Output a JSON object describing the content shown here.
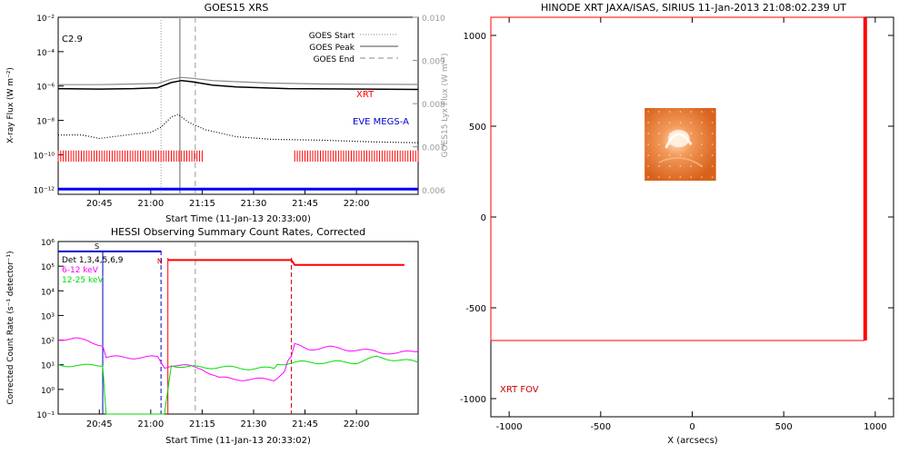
{
  "chart_data": [
    {
      "type": "line",
      "title": "GOES15 XRS",
      "xlabel": "Start Time (11-Jan-13 20:33:00)",
      "ylabel": "X-ray Flux (W m⁻²)",
      "y2label": "GOES15 Lyx Flux (W m⁻²)",
      "x_ticks": [
        "20:45",
        "21:00",
        "21:15",
        "21:30",
        "21:45",
        "22:00"
      ],
      "x_tick_minutes": [
        45,
        60,
        75,
        90,
        105,
        120
      ],
      "xlim_minutes": [
        33,
        138
      ],
      "y_ticks": [
        "10⁻²",
        "10⁻⁴",
        "10⁻⁶",
        "10⁻⁸",
        "10⁻¹⁰",
        "10⁻¹²"
      ],
      "ylim_log10": [
        -12.3,
        -2
      ],
      "y2_ticks": [
        "0.010",
        "0.009",
        "0.008",
        "0.007",
        "0.006"
      ],
      "y2lim": [
        0.0059,
        0.01
      ],
      "flare_class": "C2.9",
      "legend": [
        "GOES Start",
        "GOES Peak",
        "GOES End"
      ],
      "markers_minutes": {
        "start": 63,
        "peak": 68.5,
        "end": 73
      },
      "labels": {
        "xrt": "XRT",
        "eve": "EVE MEGS-A"
      },
      "colors": {
        "xrt": "#ff0000",
        "eve": "#0000cc"
      },
      "series": [
        {
          "name": "",
          "values_log10": [
            [
              33,
              -5.92
            ],
            [
              45,
              -5.92
            ],
            [
              55,
              -5.88
            ],
            [
              62,
              -5.85
            ],
            [
              66,
              -5.6
            ],
            [
              69,
              -5.5
            ],
            [
              72,
              -5.55
            ],
            [
              78,
              -5.68
            ],
            [
              85,
              -5.75
            ],
            [
              95,
              -5.83
            ],
            [
              110,
              -5.88
            ],
            [
              125,
              -5.9
            ],
            [
              138,
              -5.91
            ]
          ]
        },
        {
          "name": "",
          "values_log10": [
            [
              33,
              -6.15
            ],
            [
              45,
              -6.18
            ],
            [
              55,
              -6.15
            ],
            [
              62,
              -6.1
            ],
            [
              66,
              -5.8
            ],
            [
              69,
              -5.68
            ],
            [
              72,
              -5.75
            ],
            [
              78,
              -5.95
            ],
            [
              85,
              -6.05
            ],
            [
              100,
              -6.15
            ],
            [
              138,
              -6.2
            ]
          ]
        },
        {
          "name": "",
          "values_log10": [
            [
              33,
              -8.85
            ],
            [
              40,
              -8.85
            ],
            [
              45,
              -9.05
            ],
            [
              55,
              -8.8
            ],
            [
              60,
              -8.7
            ],
            [
              63,
              -8.4
            ],
            [
              66,
              -7.8
            ],
            [
              68,
              -7.65
            ],
            [
              71,
              -8.1
            ],
            [
              76,
              -8.55
            ],
            [
              85,
              -8.95
            ],
            [
              95,
              -9.1
            ],
            [
              110,
              -9.15
            ],
            [
              125,
              -9.25
            ],
            [
              138,
              -9.3
            ]
          ]
        },
        {
          "name": "",
          "values_log10": [
            [
              33,
              -12.0
            ],
            [
              138,
              -12.0
            ]
          ]
        }
      ],
      "xrt_intervals_minutes": [
        [
          33,
          75
        ],
        [
          102,
          138
        ]
      ]
    },
    {
      "type": "line",
      "title": "HESSI Observing Summary Count Rates, Corrected",
      "xlabel": "Start Time (11-Jan-13 20:33:02)",
      "ylabel": "Corrected Count Rate (s⁻¹ detector⁻¹)",
      "x_ticks": [
        "20:45",
        "21:00",
        "21:15",
        "21:30",
        "21:45",
        "22:00"
      ],
      "x_tick_minutes": [
        45,
        60,
        75,
        90,
        105,
        120
      ],
      "xlim_minutes": [
        33,
        138
      ],
      "y_ticks": [
        "10⁶",
        "10⁵",
        "10⁴",
        "10³",
        "10²",
        "10¹",
        "10⁰",
        "10⁻¹"
      ],
      "ylim_log10": [
        -1,
        6
      ],
      "marker_s": "S",
      "marker_n": "N",
      "legend": [
        {
          "label": "Det 1,3,4,5,6,9",
          "color": "#000000"
        },
        {
          "label": "6-12 keV",
          "color": "#ff00ff"
        },
        {
          "label": "12-25 keV",
          "color": "#00dd00"
        }
      ],
      "series": [
        {
          "name": "6-12 keV",
          "values_log10": [
            [
              33,
              2.05
            ],
            [
              38,
              2.05
            ],
            [
              42,
              1.95
            ],
            [
              46,
              1.8
            ],
            [
              47,
              1.3
            ],
            [
              62,
              1.3
            ],
            [
              64,
              0.9
            ],
            [
              66,
              1.0
            ],
            [
              70,
              0.95
            ],
            [
              75,
              0.85
            ],
            [
              80,
              0.45
            ],
            [
              90,
              0.4
            ],
            [
              96,
              0.4
            ],
            [
              99,
              0.75
            ],
            [
              100,
              1.15
            ],
            [
              101,
              1.3
            ],
            [
              102,
              1.8
            ],
            [
              106,
              1.65
            ],
            [
              112,
              1.7
            ],
            [
              118,
              1.62
            ],
            [
              125,
              1.55
            ],
            [
              132,
              1.45
            ],
            [
              138,
              1.58
            ]
          ]
        },
        {
          "name": "12-25 keV",
          "values_log10": [
            [
              33,
              1.0
            ],
            [
              40,
              0.95
            ],
            [
              46,
              1.0
            ],
            [
              47,
              -1.0
            ],
            [
              64,
              -1.0
            ],
            [
              66,
              1.0
            ],
            [
              70,
              0.9
            ],
            [
              80,
              0.9
            ],
            [
              90,
              0.85
            ],
            [
              96,
              0.85
            ],
            [
              97,
              1.05
            ],
            [
              105,
              1.1
            ],
            [
              120,
              1.1
            ],
            [
              126,
              1.3
            ],
            [
              132,
              1.2
            ],
            [
              138,
              1.1
            ]
          ]
        }
      ],
      "attenuator_blue_log10": [
        [
          33,
          5.6
        ],
        [
          46,
          5.6
        ],
        [
          47,
          5.6
        ],
        [
          61,
          5.6
        ],
        [
          63,
          5.6
        ]
      ],
      "attenuator_red_log10": [
        [
          65,
          5.25
        ],
        [
          101,
          5.25
        ],
        [
          102,
          5.05
        ],
        [
          134,
          5.05
        ]
      ],
      "vlines_minutes": {
        "blue": [
          46,
          63
        ],
        "red_solid": [
          65
        ],
        "red_dashed": [
          101
        ],
        "gray_dashed": [
          73
        ]
      }
    },
    {
      "type": "scatter",
      "title": "HINODE XRT JAXA/ISAS, SIRIUS 11-Jan-2013 21:08:02.239 UT",
      "xlabel": "X (arcsecs)",
      "ylabel": "",
      "x_ticks": [
        -1000,
        -500,
        0,
        500,
        1000
      ],
      "y_ticks": [
        1000,
        500,
        0,
        -500,
        -1000
      ],
      "xlim": [
        -1100,
        1100
      ],
      "ylim": [
        -1100,
        1100
      ],
      "fov_label": "XRT FOV",
      "fov_box": {
        "x0": -1100,
        "x1": 940,
        "y0": -680,
        "y1": 1100
      },
      "fov_edge_x": 945,
      "image_box": {
        "x0": -260,
        "x1": 130,
        "y0": 200,
        "y1": 600
      },
      "fov_color": "#ff0000"
    }
  ]
}
